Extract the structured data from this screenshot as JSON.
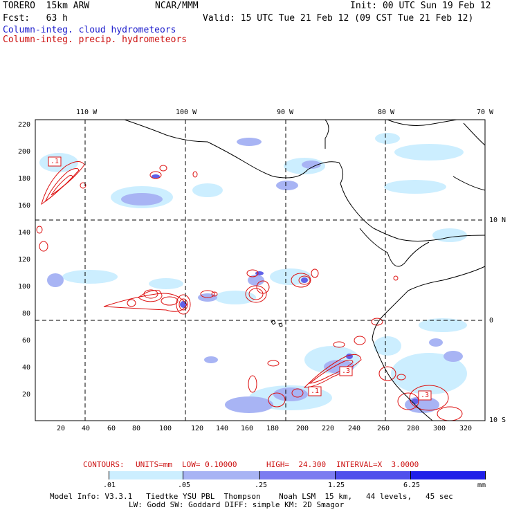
{
  "header": {
    "model": "TORERO  15km ARW",
    "org": "NCAR/MMM",
    "init": "Init: 00 UTC Sun 19 Feb 12",
    "fcst": "Fcst:   63 h",
    "valid": "Valid: 15 UTC Tue 21 Feb 12 (09 CST Tue 21 Feb 12)",
    "field_blue": "Column-integ. cloud hydrometeors",
    "field_red": "Column-integ. precip. hydrometeors"
  },
  "axes": {
    "lon_top": [
      "110 W",
      "100 W",
      "90 W",
      "80 W",
      "70 W"
    ],
    "lat_right": [
      "10 N",
      "0",
      "10 S"
    ],
    "x_grid": [
      "20",
      "40",
      "60",
      "80",
      "100",
      "120",
      "140",
      "160",
      "180",
      "200",
      "220",
      "240",
      "260",
      "280",
      "300",
      "320"
    ],
    "y_grid": [
      "220",
      "200",
      "180",
      "160",
      "140",
      "120",
      "100",
      "80",
      "60",
      "40",
      "20"
    ]
  },
  "labels_on_map": [
    ".1",
    ".1",
    ".3",
    ".1",
    ".3"
  ],
  "contours": {
    "text_prefix": "CONTOURS:",
    "units": "UNITS=mm",
    "low": "LOW= 0.10000",
    "high": "HIGH=  24.300",
    "interval": "INTERVAL=X  3.0000"
  },
  "colorbar": {
    "labels": [
      ".01",
      ".05",
      ".25",
      "1.25",
      "6.25"
    ],
    "unit": "mm",
    "colors": [
      "#ffffff",
      "#cceeff",
      "#a8b4f4",
      "#7c7cf0",
      "#5050ec",
      "#2020e8"
    ]
  },
  "footer": {
    "line1": "Model Info: V3.3.1   Tiedtke YSU PBL  Thompson    Noah LSM  15 km,   44 levels,   45 sec",
    "line2": "LW: Godd SW: Goddard DIFF: simple KM: 2D Smagor"
  }
}
